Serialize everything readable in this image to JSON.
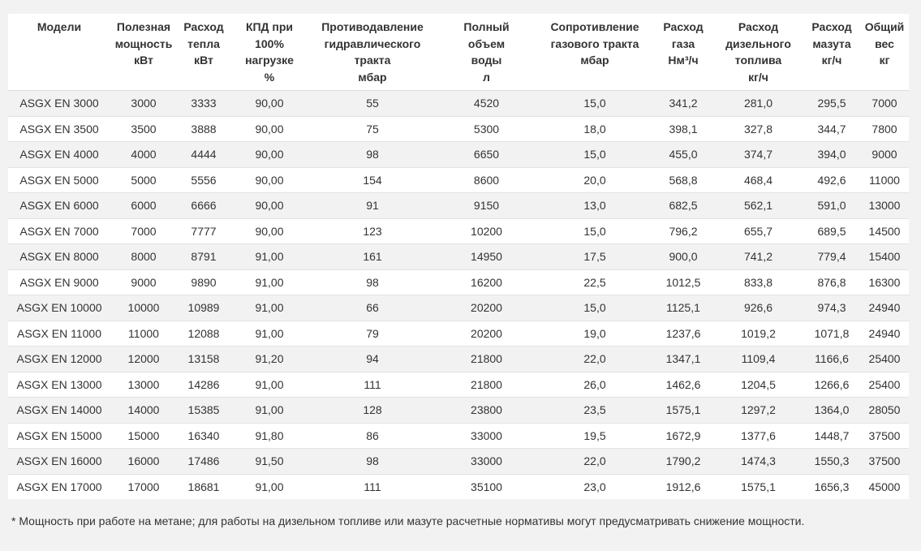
{
  "table": {
    "headers": [
      [
        "Модели"
      ],
      [
        "Полезная",
        "мощность",
        "кВт"
      ],
      [
        "Расход",
        "тепла",
        "кВт"
      ],
      [
        "КПД при",
        "100%",
        "нагрузке",
        "%"
      ],
      [
        "Противодавление",
        "гидравлического",
        "тракта",
        "мбар"
      ],
      [
        "Полный",
        "объем",
        "воды",
        "л"
      ],
      [
        "Сопротивление",
        "газового тракта",
        "мбар"
      ],
      [
        "Расход",
        "газа",
        "Нм³/ч"
      ],
      [
        "Расход",
        "дизельного",
        "топлива",
        "кг/ч"
      ],
      [
        "Расход",
        "мазута",
        "кг/ч"
      ],
      [
        "Общий",
        "вес",
        "кг"
      ]
    ],
    "rows": [
      [
        "ASGX EN 3000",
        "3000",
        "3333",
        "90,00",
        "55",
        "4520",
        "15,0",
        "341,2",
        "281,0",
        "295,5",
        "7000"
      ],
      [
        "ASGX EN 3500",
        "3500",
        "3888",
        "90,00",
        "75",
        "5300",
        "18,0",
        "398,1",
        "327,8",
        "344,7",
        "7800"
      ],
      [
        "ASGX EN 4000",
        "4000",
        "4444",
        "90,00",
        "98",
        "6650",
        "15,0",
        "455,0",
        "374,7",
        "394,0",
        "9000"
      ],
      [
        "ASGX EN 5000",
        "5000",
        "5556",
        "90,00",
        "154",
        "8600",
        "20,0",
        "568,8",
        "468,4",
        "492,6",
        "11000"
      ],
      [
        "ASGX EN 6000",
        "6000",
        "6666",
        "90,00",
        "91",
        "9150",
        "13,0",
        "682,5",
        "562,1",
        "591,0",
        "13000"
      ],
      [
        "ASGX EN 7000",
        "7000",
        "7777",
        "90,00",
        "123",
        "10200",
        "15,0",
        "796,2",
        "655,7",
        "689,5",
        "14500"
      ],
      [
        "ASGX EN 8000",
        "8000",
        "8791",
        "91,00",
        "161",
        "14950",
        "17,5",
        "900,0",
        "741,2",
        "779,4",
        "15400"
      ],
      [
        "ASGX EN 9000",
        "9000",
        "9890",
        "91,00",
        "98",
        "16200",
        "22,5",
        "1012,5",
        "833,8",
        "876,8",
        "16300"
      ],
      [
        "ASGX EN 10000",
        "10000",
        "10989",
        "91,00",
        "66",
        "20200",
        "15,0",
        "1125,1",
        "926,6",
        "974,3",
        "24940"
      ],
      [
        "ASGX EN 11000",
        "11000",
        "12088",
        "91,00",
        "79",
        "20200",
        "19,0",
        "1237,6",
        "1019,2",
        "1071,8",
        "24940"
      ],
      [
        "ASGX EN 12000",
        "12000",
        "13158",
        "91,20",
        "94",
        "21800",
        "22,0",
        "1347,1",
        "1109,4",
        "1166,6",
        "25400"
      ],
      [
        "ASGX EN 13000",
        "13000",
        "14286",
        "91,00",
        "111",
        "21800",
        "26,0",
        "1462,6",
        "1204,5",
        "1266,6",
        "25400"
      ],
      [
        "ASGX EN 14000",
        "14000",
        "15385",
        "91,00",
        "128",
        "23800",
        "23,5",
        "1575,1",
        "1297,2",
        "1364,0",
        "28050"
      ],
      [
        "ASGX EN 15000",
        "15000",
        "16340",
        "91,80",
        "86",
        "33000",
        "19,5",
        "1672,9",
        "1377,6",
        "1448,7",
        "37500"
      ],
      [
        "ASGX EN 16000",
        "16000",
        "17486",
        "91,50",
        "98",
        "33000",
        "22,0",
        "1790,2",
        "1474,3",
        "1550,3",
        "37500"
      ],
      [
        "ASGX EN 17000",
        "17000",
        "18681",
        "91,00",
        "111",
        "35100",
        "23,0",
        "1912,6",
        "1575,1",
        "1656,3",
        "45000"
      ]
    ]
  },
  "footnote": "* Мощность при работе на метане; для работы на дизельном топливе или мазуте расчетные нормативы могут предусматривать снижение мощности."
}
